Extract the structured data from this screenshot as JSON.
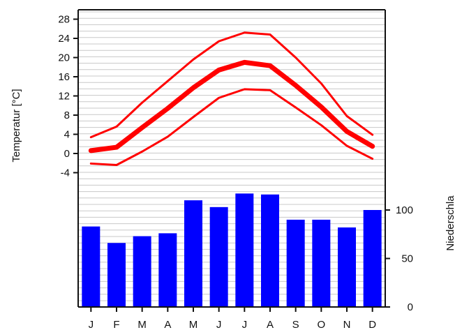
{
  "chart_data": {
    "type": "climate-diagram",
    "months": [
      "J",
      "F",
      "M",
      "A",
      "M",
      "J",
      "J",
      "A",
      "S",
      "O",
      "N",
      "D"
    ],
    "temperature": {
      "ylabel": "Temperatur [°C]",
      "yticks": [
        -4,
        0,
        4,
        8,
        12,
        16,
        20,
        24,
        28
      ],
      "ylim": [
        -6,
        30
      ],
      "color": "#ff0000",
      "series": [
        {
          "kind": "max",
          "values": [
            3.4,
            5.6,
            10.6,
            15.1,
            19.6,
            23.4,
            25.2,
            24.8,
            20.0,
            14.6,
            7.8,
            3.9
          ]
        },
        {
          "kind": "mean",
          "values": [
            0.6,
            1.3,
            5.4,
            9.4,
            13.7,
            17.4,
            19.0,
            18.3,
            14.2,
            9.7,
            4.6,
            1.5
          ]
        },
        {
          "kind": "min",
          "values": [
            -2.1,
            -2.4,
            0.4,
            3.5,
            7.6,
            11.6,
            13.4,
            13.2,
            9.6,
            5.9,
            1.6,
            -1.1
          ]
        }
      ]
    },
    "precipitation": {
      "ylabel": "Niederschla",
      "yticks": [
        0,
        50,
        100
      ],
      "ylim": [
        0,
        130
      ],
      "color": "#0000ff",
      "values": [
        83,
        66,
        73,
        76,
        110,
        103,
        117,
        116,
        90,
        90,
        82,
        100
      ]
    },
    "grid": true
  }
}
